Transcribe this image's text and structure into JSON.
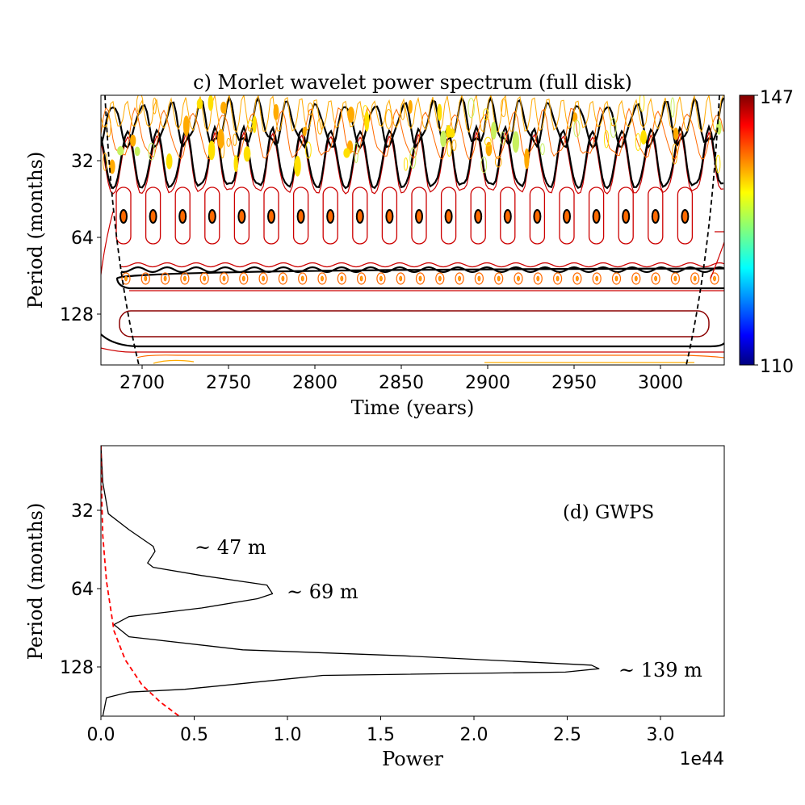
{
  "chart_data": [
    {
      "type": "contour",
      "title": "c) Morlet wavelet power spectrum (full disk)",
      "xlabel": "Time (years)",
      "ylabel": "Period (months)",
      "xlim": [
        2676,
        3037
      ],
      "ylim": [
        203,
        17.7
      ],
      "yscale": "log2",
      "xticks": [
        2700,
        2750,
        2800,
        2850,
        2900,
        2950,
        3000
      ],
      "yticks": [
        32,
        64,
        128
      ],
      "colorbar": {
        "colormap": "jet",
        "min": 110,
        "max": 147,
        "ticks": [
          "147",
          "110"
        ]
      },
      "contour_bands_period_months": [
        28,
        47,
        85,
        139,
        185
      ],
      "cone_of_influence": {
        "style": "dashed",
        "color": "#000000"
      },
      "contour_colors": [
        "#000000",
        "#cc0000",
        "#8b0000",
        "#ff6a00",
        "#ffaa00",
        "#ffe000",
        "#c8f060"
      ]
    },
    {
      "type": "line",
      "title": "(d) GWPS",
      "xlabel": "Power",
      "ylabel": "Period (months)",
      "x_multiplier_label": "1e44",
      "xlim": [
        0,
        3.34
      ],
      "ylim": [
        198,
        18
      ],
      "yscale": "log2",
      "xticks": [
        "0.0",
        "0.5",
        "1.0",
        "1.5",
        "2.0",
        "2.5",
        "3.0"
      ],
      "yticks": [
        32,
        64,
        128
      ],
      "series": [
        {
          "color": "#000000",
          "style": "solid",
          "power": [
            0.0,
            0.01,
            0.04,
            0.15,
            0.28,
            0.29,
            0.25,
            0.28,
            0.54,
            0.89,
            0.92,
            0.84,
            0.54,
            0.15,
            0.07,
            0.15,
            0.76,
            1.62,
            2.63,
            2.67,
            2.49,
            1.19,
            0.45,
            0.15,
            0.03,
            0.01
          ],
          "period": [
            18,
            25,
            33,
            38,
            44,
            46,
            51,
            53,
            57,
            62,
            67,
            70,
            76,
            82,
            88,
            98,
            110,
            116,
            126,
            130,
            134,
            138,
            156,
            160,
            168,
            198
          ]
        },
        {
          "color": "#ff0000",
          "style": "dashed",
          "power": [
            0.0,
            0.005,
            0.01,
            0.03,
            0.07,
            0.13,
            0.22,
            0.32,
            0.42
          ],
          "period": [
            18,
            30,
            40,
            60,
            93,
            120,
            150,
            175,
            198
          ]
        }
      ],
      "annotations": [
        "~ 47 m",
        "~ 69 m",
        "~ 139 m"
      ]
    }
  ]
}
